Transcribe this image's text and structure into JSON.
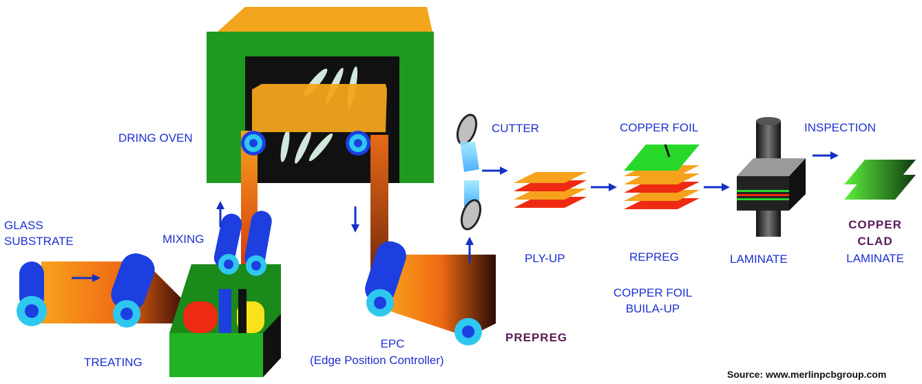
{
  "labels": {
    "dring_oven": "DRING OVEN",
    "glass_substrate_1": "GLASS",
    "glass_substrate_2": "SUBSTRATE",
    "mixing": "MIXING",
    "treating": "TREATING",
    "epc_1": "EPC",
    "epc_2": "(Edge Position Controller)",
    "prepreg": "PREPREG",
    "cutter": "CUTTER",
    "ply_up": "PLY-UP",
    "copper_foil_top": "COPPER FOIL",
    "repreg": "REPREG",
    "copper_foil_buildup_1": "COPPER FOIL",
    "copper_foil_buildup_2": "BUILA-UP",
    "inspection": "INSPECTION",
    "laminate": "LAMINATE",
    "copper_clad_1": "COPPER",
    "copper_clad_2": "CLAD",
    "copper_clad_3": "LAMINATE"
  },
  "source": "Source: www.merlinpcbgroup.com",
  "colors": {
    "label_blue": "#1b2fd0",
    "prepreg_purple": "#5a1a55",
    "oven_green": "#1e9a1e",
    "oven_orange": "#f2a51c",
    "roller_blue": "#1d3fe0",
    "roller_cyan": "#2ec7f0",
    "arrow_blue": "#1230c8",
    "sheet_red": "#ee2a12",
    "sheet_orange": "#f7a21c",
    "foil_green": "#27d82a"
  }
}
